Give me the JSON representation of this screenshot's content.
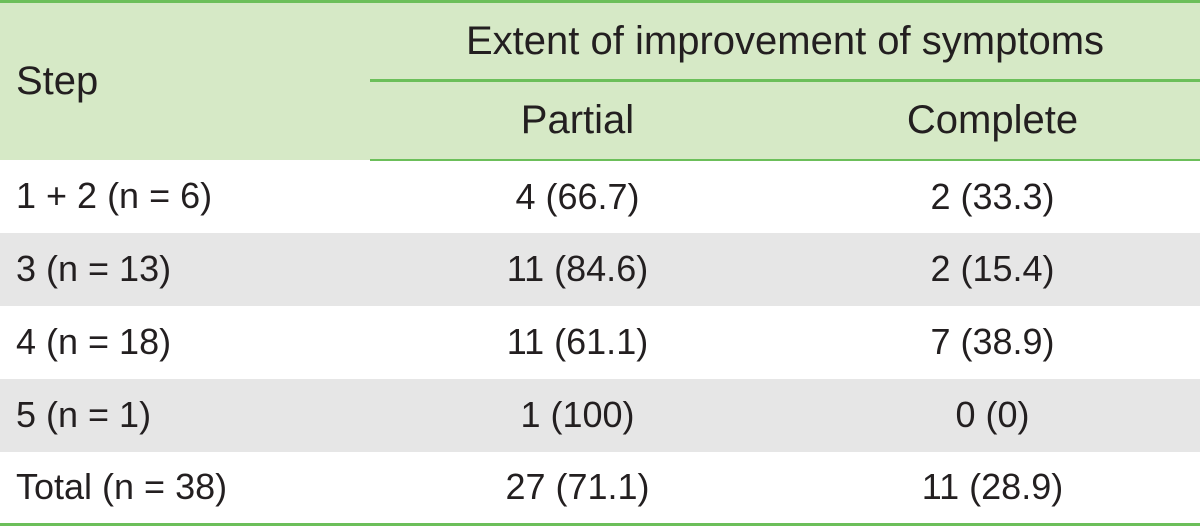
{
  "table": {
    "header": {
      "step_label": "Step",
      "group_label": "Extent of improvement of symptoms",
      "partial_label": "Partial",
      "complete_label": "Complete"
    },
    "rows": [
      {
        "step": "1 + 2 (n = 6)",
        "partial": "4 (66.7)",
        "complete": "2 (33.3)"
      },
      {
        "step": "3 (n = 13)",
        "partial": "11 (84.6)",
        "complete": "2 (15.4)"
      },
      {
        "step": "4 (n = 18)",
        "partial": "11 (61.1)",
        "complete": "7 (38.9)"
      },
      {
        "step": "5 (n = 1)",
        "partial": "1 (100)",
        "complete": "0 (0)"
      },
      {
        "step": "Total (n = 38)",
        "partial": "27 (71.1)",
        "complete": "11 (28.9)"
      }
    ]
  },
  "colors": {
    "header_bg": "#d6e9c6",
    "rule": "#6cbf5a",
    "shade_row": "#e6e6e6",
    "text": "#231f20"
  }
}
